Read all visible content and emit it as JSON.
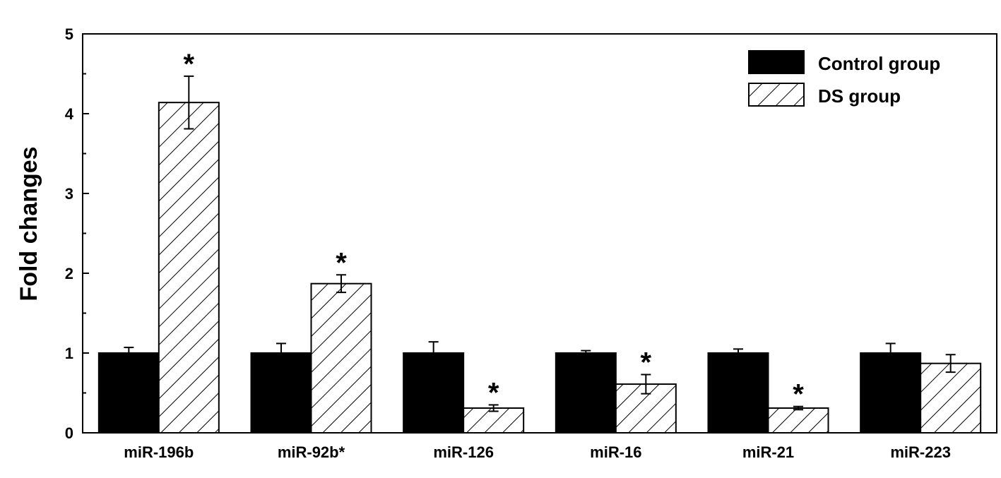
{
  "chart_data": {
    "type": "bar",
    "ylabel": "Fold changes",
    "ylim": [
      0,
      5
    ],
    "yticks": [
      "0",
      "1",
      "2",
      "3",
      "4",
      "5"
    ],
    "categories": [
      "miR-196b",
      "miR-92b*",
      "miR-126",
      "miR-16",
      "miR-21",
      "miR-223"
    ],
    "series": [
      {
        "name": "Control group",
        "fill": "solid",
        "color": "#000000",
        "values": [
          1.0,
          1.0,
          1.0,
          1.0,
          1.0,
          1.0
        ],
        "errors": [
          0.07,
          0.12,
          0.14,
          0.03,
          0.05,
          0.12
        ],
        "significance": [
          "",
          "",
          "",
          "",
          "",
          ""
        ]
      },
      {
        "name": "DS group",
        "fill": "hatched",
        "color": "#000000",
        "values": [
          4.14,
          1.87,
          0.31,
          0.61,
          0.31,
          0.87
        ],
        "errors": [
          0.33,
          0.11,
          0.04,
          0.12,
          0.02,
          0.11
        ],
        "significance": [
          "*",
          "*",
          "*",
          "*",
          "*",
          ""
        ]
      }
    ],
    "legend": "top-right",
    "grid": false
  }
}
